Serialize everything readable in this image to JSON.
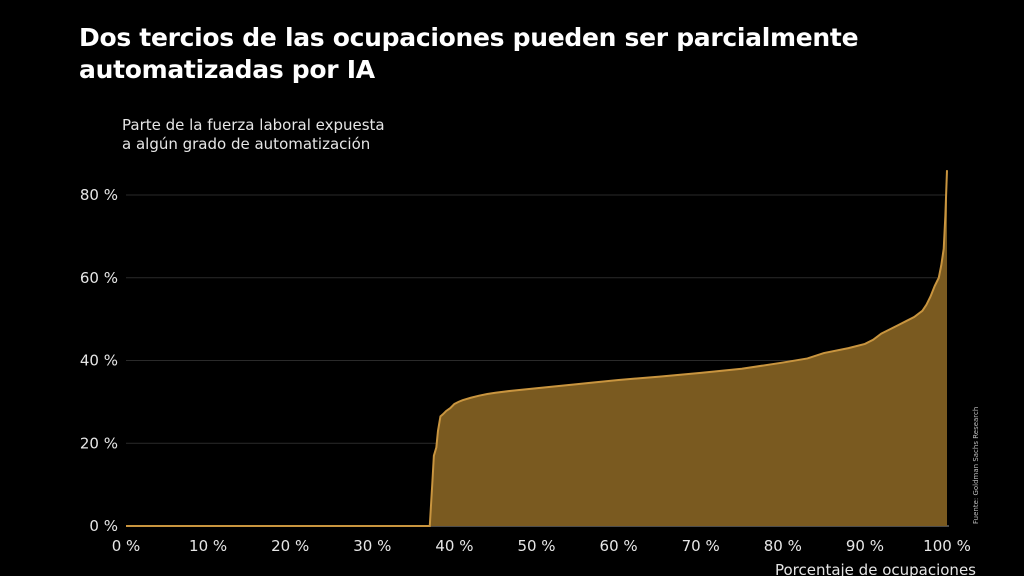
{
  "colors": {
    "background": "#000000",
    "fill": "#7a5a20",
    "line": "#c9953f",
    "grid": "#2a2a2a",
    "text": "#e6e6e6"
  },
  "chart_data": {
    "type": "area",
    "title": "Dos tercios de las ocupaciones pueden ser parcialmente automatizadas por IA",
    "ylabel_lines": [
      "Parte de la fuerza laboral expuesta",
      "a algún grado de automatización"
    ],
    "xlabel": "Porcentaje de ocupaciones",
    "source": "Fuente: Goldman Sachs Research",
    "xlim": [
      0,
      100
    ],
    "ylim": [
      0,
      85
    ],
    "grid": true,
    "x_ticks": [
      "0 %",
      "10 %",
      "20 %",
      "30 %",
      "40 %",
      "50 %",
      "60 %",
      "70 %",
      "80 %",
      "90 %",
      "100 %"
    ],
    "y_ticks": [
      "0 %",
      "20 %",
      "40 %",
      "60 %",
      "80 %"
    ],
    "x_tick_values": [
      0,
      10,
      20,
      30,
      40,
      50,
      60,
      70,
      80,
      90,
      100
    ],
    "y_tick_values": [
      0,
      20,
      40,
      60,
      80
    ],
    "x": [
      0,
      37,
      37.3,
      37.5,
      37.8,
      38,
      38.3,
      38.6,
      39,
      39.5,
      40,
      40.5,
      41,
      42,
      43,
      44,
      45,
      47,
      50,
      55,
      60,
      65,
      70,
      75,
      80,
      83,
      85,
      88,
      90,
      91,
      92,
      93,
      94,
      95,
      96,
      97,
      97.5,
      98,
      98.5,
      99,
      99.3,
      99.6,
      99.8,
      100
    ],
    "y": [
      0,
      0,
      10,
      17,
      19,
      23,
      26.5,
      27,
      27.8,
      28.5,
      29.5,
      30,
      30.4,
      31,
      31.5,
      31.9,
      32.2,
      32.7,
      33.3,
      34.3,
      35.3,
      36.1,
      37,
      38,
      39.5,
      40.5,
      41.8,
      43,
      44,
      45,
      46.5,
      47.5,
      48.5,
      49.5,
      50.5,
      52,
      53.5,
      55.5,
      58,
      60,
      63,
      67,
      75,
      86
    ]
  }
}
